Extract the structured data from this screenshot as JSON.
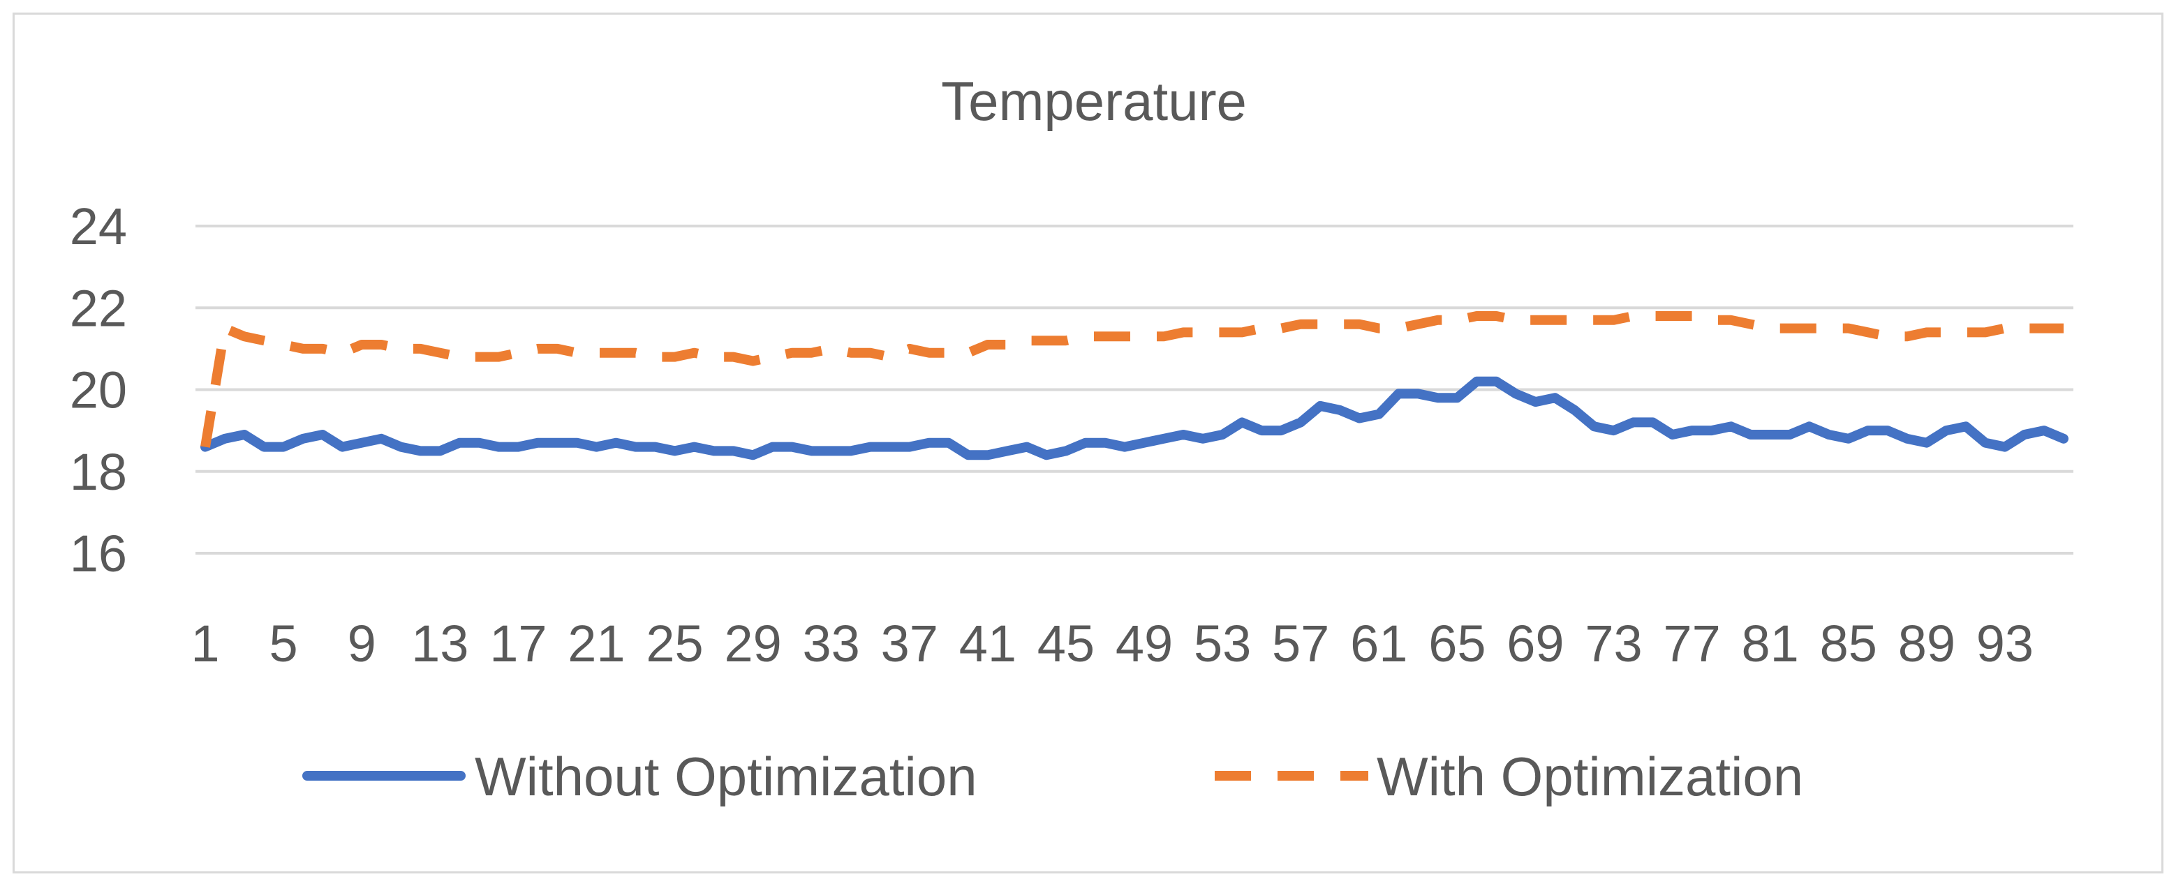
{
  "chart_data": {
    "type": "line",
    "title": "Temperature",
    "xlabel": "",
    "ylabel": "",
    "ylim": [
      16,
      24
    ],
    "y_ticks": [
      16,
      18,
      20,
      22,
      24
    ],
    "x": [
      1,
      2,
      3,
      4,
      5,
      6,
      7,
      8,
      9,
      10,
      11,
      12,
      13,
      14,
      15,
      16,
      17,
      18,
      19,
      20,
      21,
      22,
      23,
      24,
      25,
      26,
      27,
      28,
      29,
      30,
      31,
      32,
      33,
      34,
      35,
      36,
      37,
      38,
      39,
      40,
      41,
      42,
      43,
      44,
      45,
      46,
      47,
      48,
      49,
      50,
      51,
      52,
      53,
      54,
      55,
      56,
      57,
      58,
      59,
      60,
      61,
      62,
      63,
      64,
      65,
      66,
      67,
      68,
      69,
      70,
      71,
      72,
      73,
      74,
      75,
      76,
      77,
      78,
      79,
      80,
      81,
      82,
      83,
      84,
      85,
      86,
      87,
      88,
      89,
      90,
      91,
      92,
      93,
      94,
      95,
      96
    ],
    "x_tick_labels": [
      1,
      5,
      9,
      13,
      17,
      21,
      25,
      29,
      33,
      37,
      41,
      45,
      49,
      53,
      57,
      61,
      65,
      69,
      73,
      77,
      81,
      85,
      89,
      93
    ],
    "grid": true,
    "legend_position": "bottom",
    "series": [
      {
        "name": "Without Optimization",
        "color": "#4472c4",
        "style": "solid",
        "values": [
          18.6,
          18.8,
          18.9,
          18.6,
          18.6,
          18.8,
          18.9,
          18.6,
          18.7,
          18.8,
          18.6,
          18.5,
          18.5,
          18.7,
          18.7,
          18.6,
          18.6,
          18.7,
          18.7,
          18.7,
          18.6,
          18.7,
          18.6,
          18.6,
          18.5,
          18.6,
          18.5,
          18.5,
          18.4,
          18.6,
          18.6,
          18.5,
          18.5,
          18.5,
          18.6,
          18.6,
          18.6,
          18.7,
          18.7,
          18.4,
          18.4,
          18.5,
          18.6,
          18.4,
          18.5,
          18.7,
          18.7,
          18.6,
          18.7,
          18.8,
          18.9,
          18.8,
          18.9,
          19.2,
          19.0,
          19.0,
          19.2,
          19.6,
          19.5,
          19.3,
          19.4,
          19.9,
          19.9,
          19.8,
          19.8,
          20.2,
          20.2,
          19.9,
          19.7,
          19.8,
          19.5,
          19.1,
          19.0,
          19.2,
          19.2,
          18.9,
          19.0,
          19.0,
          19.1,
          18.9,
          18.9,
          18.9,
          19.1,
          18.9,
          18.8,
          19.0,
          19.0,
          18.8,
          18.7,
          19.0,
          19.1,
          18.7,
          18.6,
          18.9,
          19.0,
          18.8
        ]
      },
      {
        "name": "With Optimization",
        "color": "#ed7d31",
        "style": "dashed",
        "values": [
          18.6,
          21.5,
          21.3,
          21.2,
          21.1,
          21.0,
          21.0,
          20.9,
          21.1,
          21.1,
          21.0,
          21.0,
          20.9,
          20.8,
          20.8,
          20.8,
          20.9,
          21.0,
          21.0,
          20.9,
          20.9,
          20.9,
          20.9,
          20.8,
          20.8,
          20.9,
          20.8,
          20.8,
          20.7,
          20.8,
          20.9,
          20.9,
          21.0,
          20.9,
          20.9,
          20.8,
          21.0,
          20.9,
          20.9,
          20.9,
          21.1,
          21.1,
          21.2,
          21.2,
          21.2,
          21.3,
          21.3,
          21.3,
          21.3,
          21.3,
          21.4,
          21.4,
          21.4,
          21.4,
          21.5,
          21.5,
          21.6,
          21.6,
          21.6,
          21.6,
          21.5,
          21.5,
          21.6,
          21.7,
          21.7,
          21.8,
          21.8,
          21.7,
          21.7,
          21.7,
          21.7,
          21.7,
          21.7,
          21.8,
          21.8,
          21.8,
          21.8,
          21.7,
          21.7,
          21.6,
          21.5,
          21.5,
          21.5,
          21.5,
          21.5,
          21.4,
          21.3,
          21.3,
          21.4,
          21.4,
          21.4,
          21.4,
          21.5,
          21.5,
          21.5,
          21.5
        ]
      }
    ]
  }
}
